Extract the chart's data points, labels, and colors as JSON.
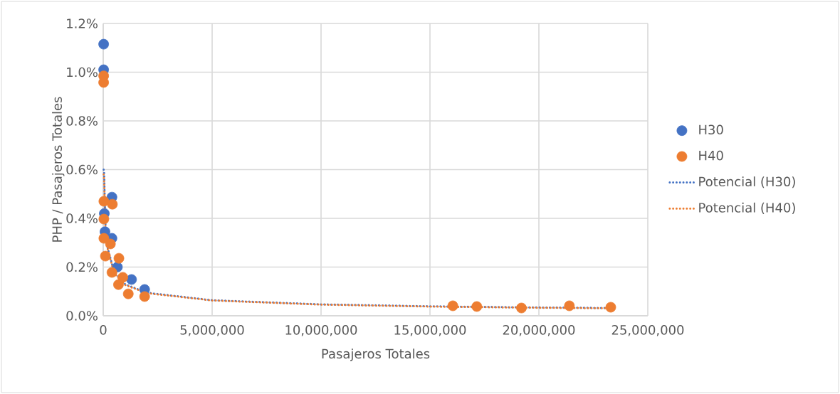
{
  "chart_data": {
    "type": "scatter",
    "xlabel": "Pasajeros Totales",
    "ylabel": "PHP / Pasajeros Totales",
    "xlim": [
      0,
      25000000
    ],
    "ylim": [
      0,
      1.2
    ],
    "xticks": [
      0,
      {
        "value": 5000000,
        "label": "5,000,000"
      },
      {
        "value": 10000000,
        "label": "10,000,000"
      },
      {
        "value": 15000000,
        "label": "15,000,000"
      },
      {
        "value": 20000000,
        "label": "20,000,000"
      },
      {
        "value": 25000000,
        "label": "25,000,000"
      }
    ],
    "yticks": [
      {
        "value": 0,
        "label": "0.0%"
      },
      {
        "value": 0.2,
        "label": "0.2%"
      },
      {
        "value": 0.4,
        "label": "0.4%"
      },
      {
        "value": 0.6,
        "label": "0.6%"
      },
      {
        "value": 0.8,
        "label": "0.8%"
      },
      {
        "value": 1.0,
        "label": "1.0%"
      },
      {
        "value": 1.2,
        "label": "1.2%"
      }
    ],
    "grid": true,
    "legend": "right",
    "series": [
      {
        "name": "H30",
        "marker": "circle",
        "color": "#4472c4",
        "x": [
          20000,
          20000,
          400000,
          50000,
          80000,
          400000,
          650000,
          1300000,
          1900000
        ],
        "values": [
          1.115,
          1.01,
          0.487,
          0.42,
          0.345,
          0.318,
          0.2,
          0.149,
          0.108
        ]
      },
      {
        "name": "H40",
        "marker": "circle",
        "color": "#ed7d31",
        "x": [
          20000,
          20000,
          30000,
          420000,
          30000,
          30000,
          330000,
          100000,
          720000,
          400000,
          700000,
          1150000,
          1900000,
          900000,
          16050000,
          17150000,
          19200000,
          21400000,
          23300000
        ],
        "values": [
          0.985,
          0.958,
          0.47,
          0.458,
          0.397,
          0.318,
          0.295,
          0.245,
          0.236,
          0.178,
          0.128,
          0.09,
          0.079,
          0.158,
          0.041,
          0.038,
          0.032,
          0.041,
          0.035
        ]
      },
      {
        "name": "Potencial (H30)",
        "type": "line",
        "marker": "none",
        "line_style": "dotted",
        "color": "#4472c4",
        "x": [
          20000,
          40000,
          100000,
          200000,
          500000,
          1000000,
          2000000,
          5000000,
          10000000,
          15000000,
          20000000,
          23300000
        ],
        "values": [
          0.6,
          0.59,
          0.38,
          0.28,
          0.18,
          0.13,
          0.095,
          0.064,
          0.047,
          0.039,
          0.034,
          0.032
        ]
      },
      {
        "name": "Potencial (H40)",
        "type": "line",
        "marker": "none",
        "line_style": "dotted",
        "color": "#ed7d31",
        "x": [
          20000,
          40000,
          100000,
          200000,
          500000,
          1000000,
          2000000,
          5000000,
          10000000,
          15000000,
          20000000,
          23300000
        ],
        "values": [
          0.58,
          0.56,
          0.37,
          0.275,
          0.175,
          0.127,
          0.093,
          0.063,
          0.046,
          0.038,
          0.033,
          0.031
        ]
      }
    ]
  }
}
